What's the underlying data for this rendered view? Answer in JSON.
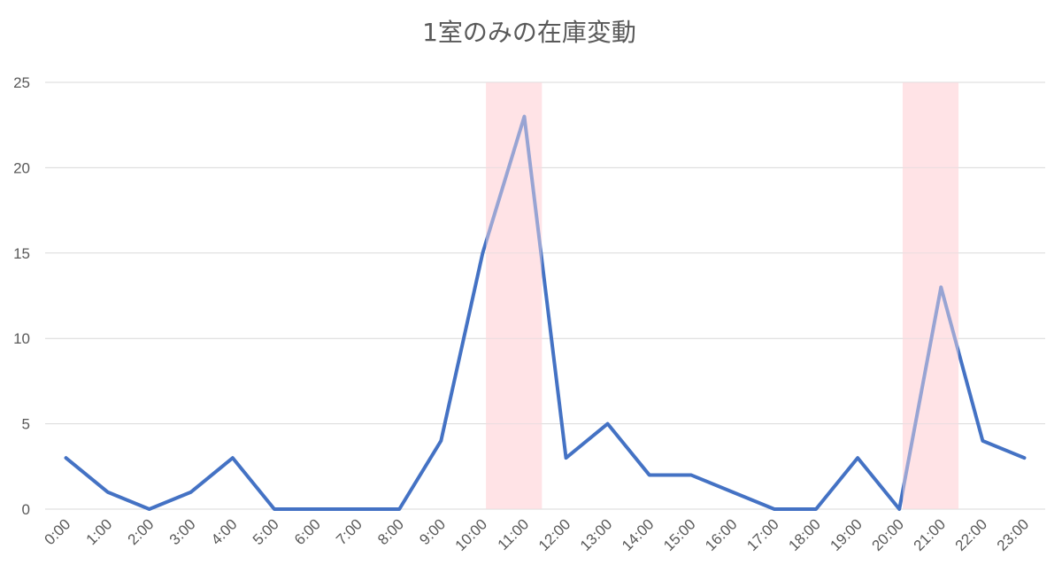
{
  "chart_data": {
    "type": "line",
    "title": "1室のみの在庫変動",
    "xlabel": "",
    "ylabel": "",
    "categories": [
      "0:00",
      "1:00",
      "2:00",
      "3:00",
      "4:00",
      "5:00",
      "6:00",
      "7:00",
      "8:00",
      "9:00",
      "10:00",
      "11:00",
      "12:00",
      "13:00",
      "14:00",
      "15:00",
      "16:00",
      "17:00",
      "18:00",
      "19:00",
      "20:00",
      "21:00",
      "22:00",
      "23:00"
    ],
    "series": [
      {
        "values": [
          3,
          1,
          0,
          1,
          3,
          0,
          0,
          0,
          0,
          4,
          15,
          23,
          3,
          5,
          2,
          2,
          1,
          0,
          0,
          3,
          0,
          13,
          4,
          3
        ]
      }
    ],
    "ylim": [
      0,
      25
    ],
    "yticks": [
      0,
      5,
      10,
      15,
      20,
      25
    ],
    "grid": true,
    "legend": "none",
    "highlight_bands": [
      {
        "from": "10:00",
        "to": "11:00"
      },
      {
        "from": "20:00",
        "to": "21:00"
      }
    ],
    "colors": {
      "line": "#4472C4",
      "band": "#FFE3E6",
      "grid": "#D9D9D9",
      "text": "#595959"
    }
  }
}
